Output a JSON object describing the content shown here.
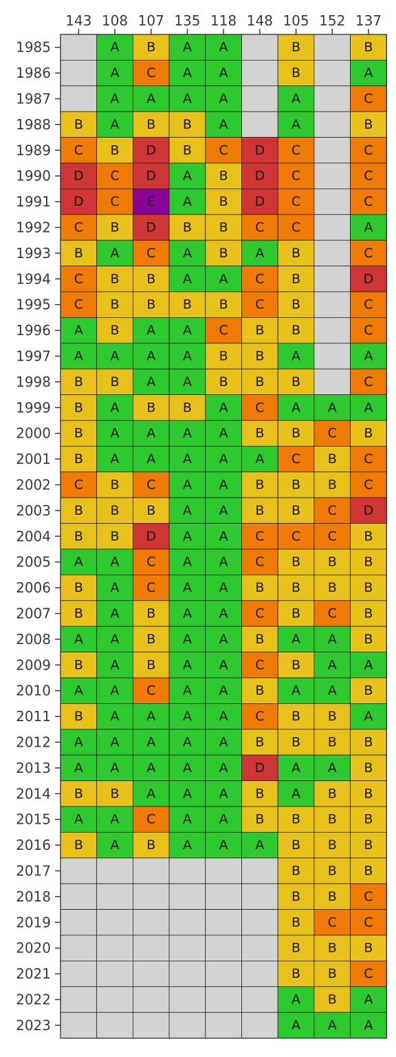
{
  "chart_data": {
    "type": "heatmap",
    "title": "",
    "xlabel": "",
    "ylabel": "",
    "x_axis_position": "top",
    "grid": true,
    "columns": [
      "143",
      "108",
      "107",
      "135",
      "118",
      "148",
      "105",
      "152",
      "137"
    ],
    "rows": [
      "1985",
      "1986",
      "1987",
      "1988",
      "1989",
      "1990",
      "1991",
      "1992",
      "1993",
      "1994",
      "1995",
      "1996",
      "1997",
      "1998",
      "1999",
      "2000",
      "2001",
      "2002",
      "2003",
      "2004",
      "2005",
      "2006",
      "2007",
      "2008",
      "2009",
      "2010",
      "2011",
      "2012",
      "2013",
      "2014",
      "2015",
      "2016",
      "2017",
      "2018",
      "2019",
      "2020",
      "2021",
      "2022",
      "2023"
    ],
    "values": [
      [
        null,
        "A",
        "B",
        "A",
        "A",
        null,
        "B",
        null,
        "B"
      ],
      [
        null,
        "A",
        "C",
        "A",
        "A",
        null,
        "B",
        null,
        "A"
      ],
      [
        null,
        "A",
        "A",
        "A",
        "A",
        null,
        "A",
        null,
        "C"
      ],
      [
        "B",
        "A",
        "B",
        "B",
        "A",
        null,
        "A",
        null,
        "B"
      ],
      [
        "C",
        "B",
        "D",
        "B",
        "C",
        "D",
        "C",
        null,
        "C"
      ],
      [
        "D",
        "C",
        "D",
        "A",
        "B",
        "D",
        "C",
        null,
        "C"
      ],
      [
        "D",
        "C",
        "E",
        "A",
        "B",
        "D",
        "C",
        null,
        "C"
      ],
      [
        "C",
        "B",
        "D",
        "B",
        "B",
        "C",
        "C",
        null,
        "A"
      ],
      [
        "B",
        "A",
        "C",
        "A",
        "B",
        "A",
        "B",
        null,
        "C"
      ],
      [
        "C",
        "B",
        "B",
        "A",
        "A",
        "C",
        "B",
        null,
        "D"
      ],
      [
        "C",
        "B",
        "B",
        "B",
        "B",
        "C",
        "B",
        null,
        "C"
      ],
      [
        "A",
        "B",
        "A",
        "A",
        "C",
        "B",
        "B",
        null,
        "C"
      ],
      [
        "A",
        "A",
        "A",
        "A",
        "B",
        "B",
        "A",
        null,
        "A"
      ],
      [
        "B",
        "B",
        "A",
        "A",
        "B",
        "B",
        "B",
        null,
        "C"
      ],
      [
        "B",
        "A",
        "B",
        "B",
        "A",
        "C",
        "A",
        "A",
        "A"
      ],
      [
        "B",
        "A",
        "A",
        "A",
        "A",
        "B",
        "B",
        "C",
        "B"
      ],
      [
        "B",
        "A",
        "A",
        "A",
        "A",
        "A",
        "C",
        "B",
        "C"
      ],
      [
        "C",
        "B",
        "C",
        "A",
        "A",
        "B",
        "B",
        "B",
        "C"
      ],
      [
        "B",
        "B",
        "B",
        "A",
        "A",
        "B",
        "B",
        "C",
        "D"
      ],
      [
        "B",
        "B",
        "D",
        "A",
        "A",
        "C",
        "C",
        "C",
        "B"
      ],
      [
        "A",
        "A",
        "C",
        "A",
        "A",
        "C",
        "B",
        "B",
        "B"
      ],
      [
        "B",
        "A",
        "C",
        "A",
        "A",
        "B",
        "B",
        "B",
        "B"
      ],
      [
        "B",
        "A",
        "B",
        "A",
        "A",
        "C",
        "B",
        "C",
        "B"
      ],
      [
        "A",
        "A",
        "B",
        "A",
        "A",
        "B",
        "A",
        "A",
        "B"
      ],
      [
        "B",
        "A",
        "B",
        "A",
        "A",
        "C",
        "B",
        "A",
        "A"
      ],
      [
        "A",
        "A",
        "C",
        "A",
        "A",
        "B",
        "A",
        "A",
        "B"
      ],
      [
        "B",
        "A",
        "A",
        "A",
        "A",
        "C",
        "B",
        "B",
        "A"
      ],
      [
        "A",
        "A",
        "A",
        "A",
        "A",
        "B",
        "B",
        "B",
        "B"
      ],
      [
        "A",
        "A",
        "A",
        "A",
        "A",
        "D",
        "A",
        "A",
        "B"
      ],
      [
        "B",
        "B",
        "A",
        "A",
        "A",
        "B",
        "A",
        "B",
        "B"
      ],
      [
        "A",
        "A",
        "C",
        "A",
        "A",
        "B",
        "B",
        "B",
        "B"
      ],
      [
        "B",
        "A",
        "B",
        "A",
        "A",
        "A",
        "B",
        "B",
        "B"
      ],
      [
        null,
        null,
        null,
        null,
        null,
        null,
        "B",
        "B",
        "B"
      ],
      [
        null,
        null,
        null,
        null,
        null,
        null,
        "B",
        "B",
        "C"
      ],
      [
        null,
        null,
        null,
        null,
        null,
        null,
        "B",
        "C",
        "C"
      ],
      [
        null,
        null,
        null,
        null,
        null,
        null,
        "B",
        "B",
        "B"
      ],
      [
        null,
        null,
        null,
        null,
        null,
        null,
        "B",
        "B",
        "C"
      ],
      [
        null,
        null,
        null,
        null,
        null,
        null,
        "A",
        "B",
        "A"
      ],
      [
        null,
        null,
        null,
        null,
        null,
        null,
        "A",
        "A",
        "A"
      ]
    ],
    "color_map": {
      "A": "#2ec92e",
      "B": "#e8c11a",
      "C": "#ef7a06",
      "D": "#d03535",
      "E": "#8a0396",
      "missing": "#d3d3d3"
    },
    "border_color": "#222222",
    "text_color": "#1a1a1a",
    "tick_color": "#3a3a3a"
  }
}
